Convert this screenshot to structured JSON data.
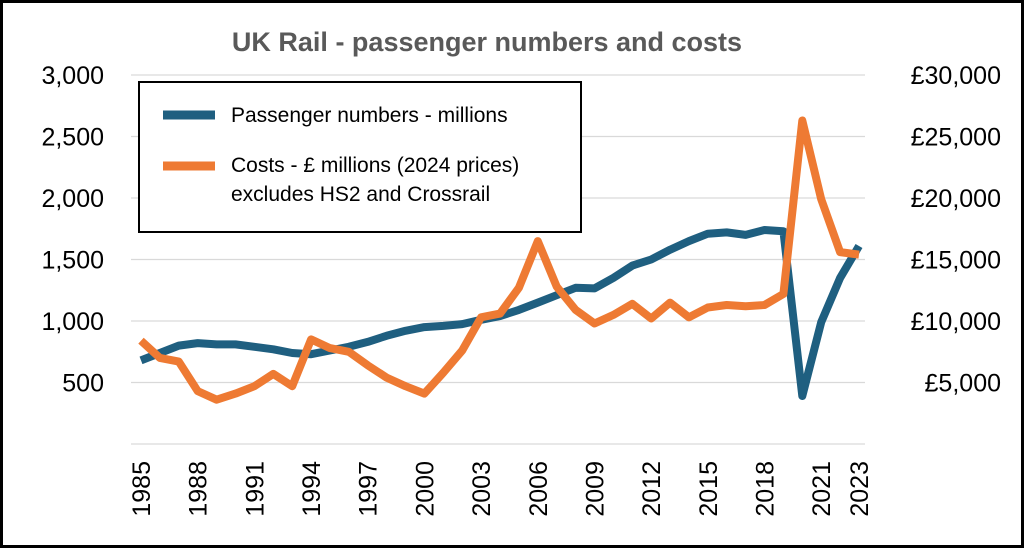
{
  "chart_data": {
    "type": "line",
    "title": "UK Rail - passenger numbers and costs",
    "x": [
      1985,
      1986,
      1987,
      1988,
      1989,
      1990,
      1991,
      1992,
      1993,
      1994,
      1995,
      1996,
      1997,
      1998,
      1999,
      2000,
      2001,
      2002,
      2003,
      2004,
      2005,
      2006,
      2007,
      2008,
      2009,
      2010,
      2011,
      2012,
      2013,
      2014,
      2015,
      2016,
      2017,
      2018,
      2019,
      2020,
      2021,
      2022,
      2023
    ],
    "x_tick_labels": [
      "1985",
      "1988",
      "1991",
      "1994",
      "1997",
      "2000",
      "2003",
      "2006",
      "2009",
      "2012",
      "2015",
      "2018",
      "2021",
      "2023"
    ],
    "y_left_ticks": [
      "500",
      "1,000",
      "1,500",
      "2,000",
      "2,500",
      "3,000"
    ],
    "y_left_range": [
      0,
      3000
    ],
    "y_right_ticks": [
      "£5,000",
      "£10,000",
      "£15,000",
      "£20,000",
      "£25,000",
      "£30,000"
    ],
    "y_right_range": [
      0,
      30000
    ],
    "grid": "horizontal",
    "legend": "top-left",
    "series": [
      {
        "name": "Passenger numbers - millions",
        "axis": "left",
        "color": "#1f5f80",
        "values": [
          680,
          740,
          800,
          820,
          810,
          810,
          790,
          770,
          740,
          730,
          760,
          790,
          830,
          880,
          920,
          950,
          960,
          975,
          1010,
          1040,
          1090,
          1150,
          1210,
          1270,
          1265,
          1350,
          1450,
          1500,
          1580,
          1650,
          1710,
          1720,
          1700,
          1740,
          1730,
          390,
          990,
          1350,
          1610
        ]
      },
      {
        "name": "Costs - £ millions (2024 prices)",
        "name_line2": "excludes HS2 and Crossrail",
        "axis": "right",
        "color": "#ee7a33",
        "values": [
          8400,
          7000,
          6700,
          4300,
          3600,
          4100,
          4700,
          5700,
          4700,
          8500,
          7800,
          7500,
          6400,
          5400,
          4700,
          4100,
          5800,
          7600,
          10300,
          10600,
          12700,
          16500,
          12800,
          10900,
          9800,
          10500,
          11400,
          10200,
          11500,
          10300,
          11100,
          11300,
          11200,
          11300,
          12200,
          26300,
          19900,
          15600,
          15400
        ]
      }
    ]
  }
}
